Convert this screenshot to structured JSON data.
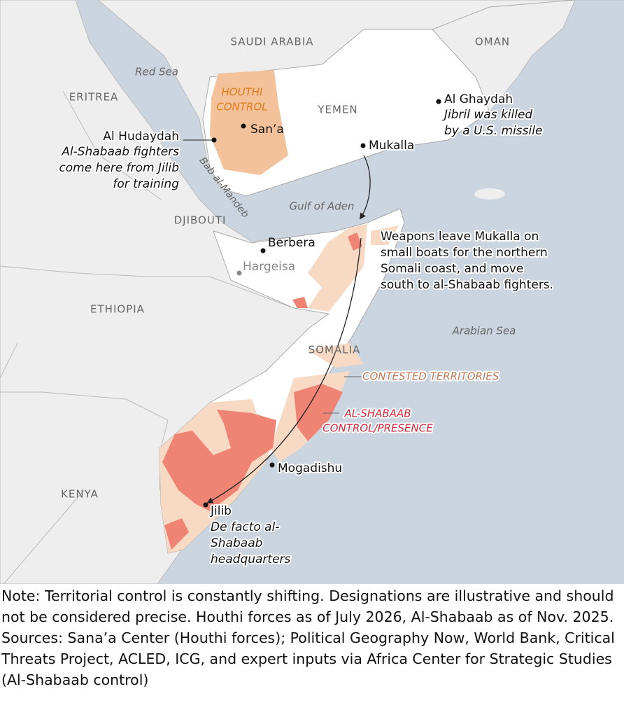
{
  "map": {
    "countries": [
      "SAUDI ARABIA",
      "OMAN",
      "ERITREA",
      "YEMEN",
      "DJIBOUTI",
      "ETHIOPIA",
      "SOMALIA",
      "KENYA"
    ],
    "water": [
      "Red Sea",
      "Gulf of Aden",
      "Arabian Sea",
      "Bab al-Mandeb"
    ],
    "legend": {
      "houthi": [
        "HOUTHI",
        "CONTROL"
      ],
      "contested": "CONTESTED TERRITORIES",
      "alshabaab": [
        "AL-SHABAAB",
        "CONTROL/PRESENCE"
      ]
    },
    "places": {
      "hudaydah": {
        "name": "Al Hudaydah",
        "note": [
          "Al-Shabaab fighters",
          "come here from Jilib",
          "for training"
        ]
      },
      "sanaa": {
        "name": "San’a"
      },
      "mukalla": {
        "name": "Mukalla"
      },
      "ghaydah": {
        "name": "Al Ghaydah",
        "note": [
          "Jibril was killed",
          "by a U.S. missile"
        ]
      },
      "berbera": {
        "name": "Berbera"
      },
      "hargeisa": {
        "name": "Hargeisa"
      },
      "mogadishu": {
        "name": "Mogadishu"
      },
      "jilib": {
        "name": "Jilib",
        "note": [
          "De facto al-",
          "Shabaab",
          "headquarters"
        ]
      }
    },
    "annotation": [
      "Weapons leave Mukalla on",
      "small boats for the northern",
      "Somali coast, and move",
      "south to al-Shabaab fighters."
    ]
  },
  "footer": {
    "note": "Note: Territorial control is constantly shifting. Designations are illustrative and should not be considered precise. Houthi forces as of July 2026, Al-Shabaab as of Nov. 2025.",
    "sources": "Sources: Sana’a Center (Houthi forces); Political Geography Now, World Bank, Critical Threats Project, ACLED, ICG, and expert inputs via Africa Center for Strategic Studies (Al-Shabaab control)"
  }
}
